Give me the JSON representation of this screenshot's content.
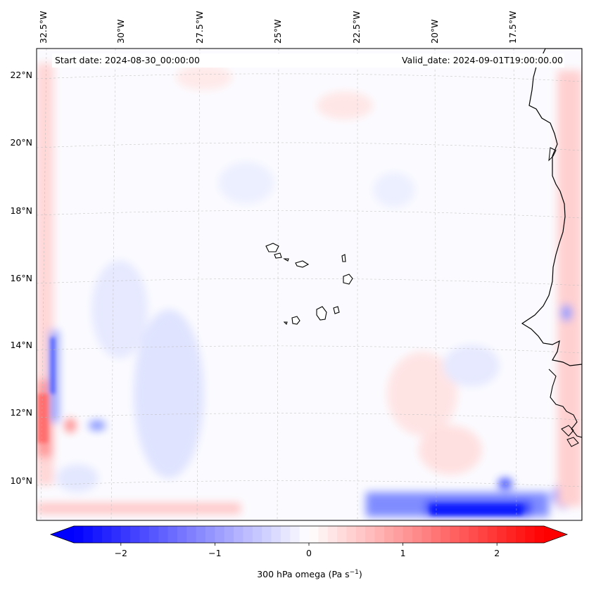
{
  "map": {
    "start_date": "Start date: 2024-08-30_00:00:00",
    "valid_date": "Valid_date: 2024-09-01T19:00:00.00",
    "lon_labels": [
      "32.5°W",
      "30°W",
      "27.5°W",
      "25°W",
      "22.5°W",
      "20°W",
      "17.5°W"
    ],
    "lat_labels": [
      "22°N",
      "20°N",
      "18°N",
      "16°N",
      "14°N",
      "12°N",
      "10°N"
    ],
    "land_color": "#ffffff",
    "coastline_color": "#000000"
  },
  "colorbar": {
    "label_main": "300 hPa omega (Pa s",
    "label_exp": "−1",
    "label_end": ")",
    "ticks": [
      "−2",
      "−1",
      "0",
      "1",
      "2"
    ],
    "tick_values": [
      -2,
      -1,
      0,
      1,
      2
    ],
    "vmin": -2.5,
    "vmax": 2.5,
    "low_color": "#0000ff",
    "mid_color": "#ffffff",
    "high_color": "#ff0000"
  }
}
